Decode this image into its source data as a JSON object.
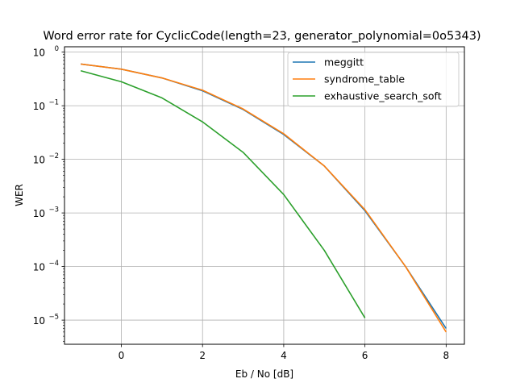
{
  "chart_data": {
    "type": "line",
    "title": "Word error rate for CyclicCode(length=23, generator_polynomial=0o5343)",
    "xlabel": "Eb / No [dB]",
    "ylabel": "WER",
    "xlim": [
      -1.4,
      8.45
    ],
    "ylim_log10": [
      -5.45,
      0.1
    ],
    "yscale": "log",
    "grid": true,
    "legend_position": "top-right",
    "x_ticks": [
      0,
      2,
      4,
      6,
      8
    ],
    "y_ticks": [
      {
        "base": "10",
        "exp": "0",
        "log10": 0
      },
      {
        "base": "10",
        "exp": "−1",
        "log10": -1
      },
      {
        "base": "10",
        "exp": "−2",
        "log10": -2
      },
      {
        "base": "10",
        "exp": "−3",
        "log10": -3
      },
      {
        "base": "10",
        "exp": "−4",
        "log10": -4
      },
      {
        "base": "10",
        "exp": "−5",
        "log10": -5
      }
    ],
    "series": [
      {
        "name": "meggitt",
        "color": "#1f77b4",
        "x": [
          -1,
          0,
          1,
          2,
          3,
          4,
          5,
          6,
          7,
          8
        ],
        "y": [
          0.6,
          0.48,
          0.33,
          0.19,
          0.085,
          0.029,
          0.0075,
          0.0011,
          0.0001,
          7e-06
        ]
      },
      {
        "name": "syndrome_table",
        "color": "#ff7f0e",
        "x": [
          -1,
          0,
          1,
          2,
          3,
          4,
          5,
          6,
          7,
          8
        ],
        "y": [
          0.6,
          0.48,
          0.33,
          0.195,
          0.087,
          0.03,
          0.0075,
          0.00115,
          0.0001,
          6e-06
        ]
      },
      {
        "name": "exhaustive_search_soft",
        "color": "#2ca02c",
        "x": [
          -1,
          0,
          1,
          2,
          3,
          4,
          5,
          6
        ],
        "y": [
          0.45,
          0.28,
          0.14,
          0.05,
          0.0135,
          0.0022,
          0.0002,
          1.1e-05
        ]
      }
    ]
  }
}
